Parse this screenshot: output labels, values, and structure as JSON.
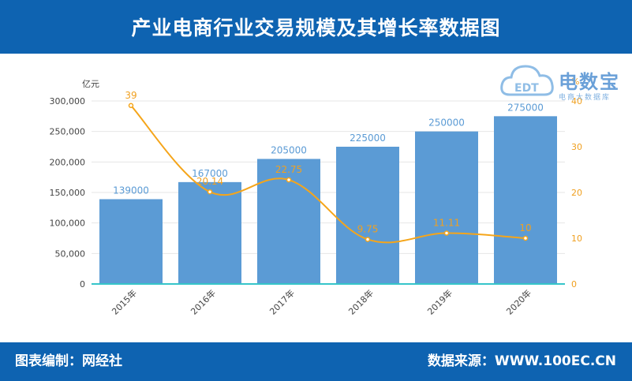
{
  "header": {
    "title": "产业电商行业交易规模及其增长率数据图"
  },
  "footer": {
    "left_text": "图表编制：网经社",
    "right_text": "数据来源：WWW.100EC.CN"
  },
  "logo": {
    "badge_text": "EDT",
    "name": "电数宝",
    "subtitle": "电商大数据库"
  },
  "colors": {
    "header_bg": "#0e63b1",
    "bar": "#5b9bd5",
    "line": "#f5a51a",
    "bar_label": "#5b9bd5",
    "line_label": "#f0a020",
    "axis_base": "#36c5c9"
  },
  "chart_data": {
    "type": "bar",
    "categories": [
      "2015年",
      "2016年",
      "2017年",
      "2018年",
      "2019年",
      "2020年"
    ],
    "series": [
      {
        "type": "bar",
        "axis": "left",
        "values": [
          139000,
          167000,
          205000,
          225000,
          250000,
          275000
        ]
      },
      {
        "type": "line",
        "axis": "right",
        "values": [
          39,
          20.14,
          22.75,
          9.75,
          11.11,
          10
        ]
      }
    ],
    "ylabel": "亿元",
    "ylabel_right": "%",
    "ylim": [
      0,
      300000
    ],
    "yticks": [
      0,
      50000,
      100000,
      150000,
      200000,
      250000,
      300000
    ],
    "ytick_labels": [
      "0",
      "50,000",
      "100,000",
      "150,000",
      "200,000",
      "250,000",
      "300,000"
    ],
    "ylim_right": [
      0,
      40
    ],
    "yticks_right": [
      0,
      10,
      20,
      30,
      40
    ],
    "ytick_labels_right": [
      "0",
      "10",
      "20",
      "30",
      "40"
    ],
    "bar_labels": [
      "139000",
      "167000",
      "205000",
      "225000",
      "250000",
      "275000"
    ],
    "line_labels": [
      "39",
      "20.14",
      "22.75",
      "9.75",
      "11.11",
      "10"
    ],
    "grid": true
  }
}
